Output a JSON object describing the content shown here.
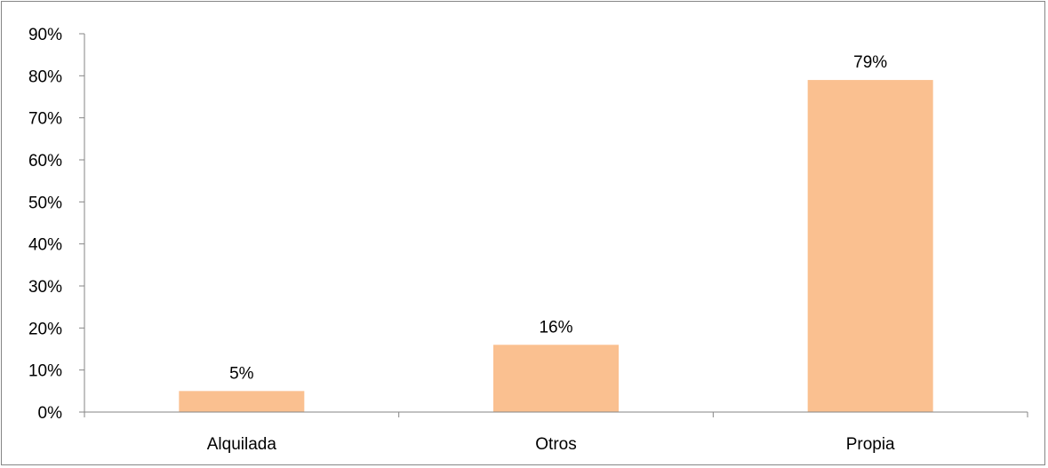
{
  "chart_data": {
    "type": "bar",
    "categories": [
      "Alquilada",
      "Otros",
      "Propia"
    ],
    "values": [
      5,
      16,
      79
    ],
    "data_labels": [
      "5%",
      "16%",
      "79%"
    ],
    "ylim": [
      0,
      90
    ],
    "yticks": [
      0,
      10,
      20,
      30,
      40,
      50,
      60,
      70,
      80,
      90
    ],
    "ytick_labels": [
      "0%",
      "10%",
      "20%",
      "30%",
      "40%",
      "50%",
      "60%",
      "70%",
      "80%",
      "90%"
    ],
    "title": "",
    "xlabel": "",
    "ylabel": "",
    "grid": false,
    "legend": "none",
    "bar_color": "#FAC090"
  }
}
